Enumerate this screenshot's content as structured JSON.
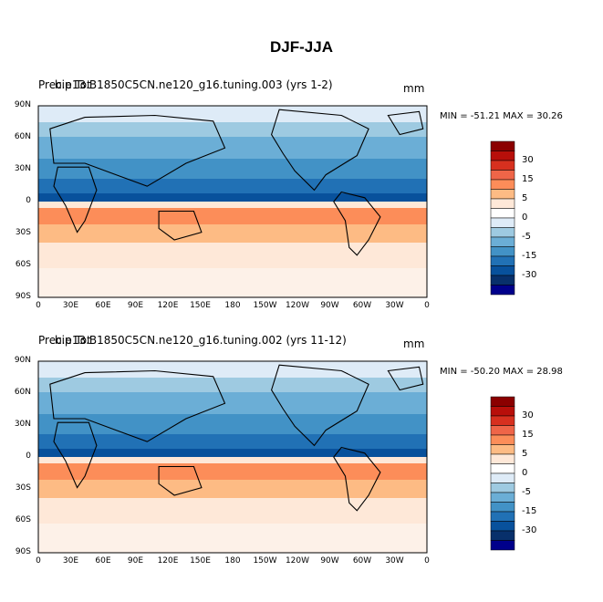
{
  "title": "DJF-JJA",
  "panels": [
    {
      "variable": "Precip Tot",
      "case": "b.e13.B1850C5CN.ne120_g16.tuning.003 (yrs 1-2)",
      "units": "mm",
      "min_label": "MIN = -51.21",
      "max_label": "MAX =  30.26"
    },
    {
      "variable": "Precip Tot",
      "case": "b.e13.B1850C5CN.ne120_g16.tuning.002 (yrs 11-12)",
      "units": "mm",
      "min_label": "MIN = -50.20",
      "max_label": "MAX =  28.98"
    }
  ],
  "lat_labels": [
    "90N",
    "60N",
    "30N",
    "0",
    "30S",
    "60S",
    "90S"
  ],
  "lon_labels": [
    "0",
    "30E",
    "60E",
    "90E",
    "120E",
    "150E",
    "180",
    "150W",
    "120W",
    "90W",
    "60W",
    "30W",
    "0"
  ],
  "colorbar": {
    "labels": [
      "30",
      "15",
      "5",
      "0",
      "-5",
      "-15",
      "-30"
    ],
    "colors": [
      "#8b0000",
      "#b80f0a",
      "#d7301f",
      "#ef6548",
      "#fc8d59",
      "#fdbb84",
      "#fee8d8",
      "#ffffff",
      "#deebf7",
      "#9ecae1",
      "#6baed6",
      "#4292c6",
      "#2171b5",
      "#08519c",
      "#08306b",
      "#00008b"
    ]
  }
}
